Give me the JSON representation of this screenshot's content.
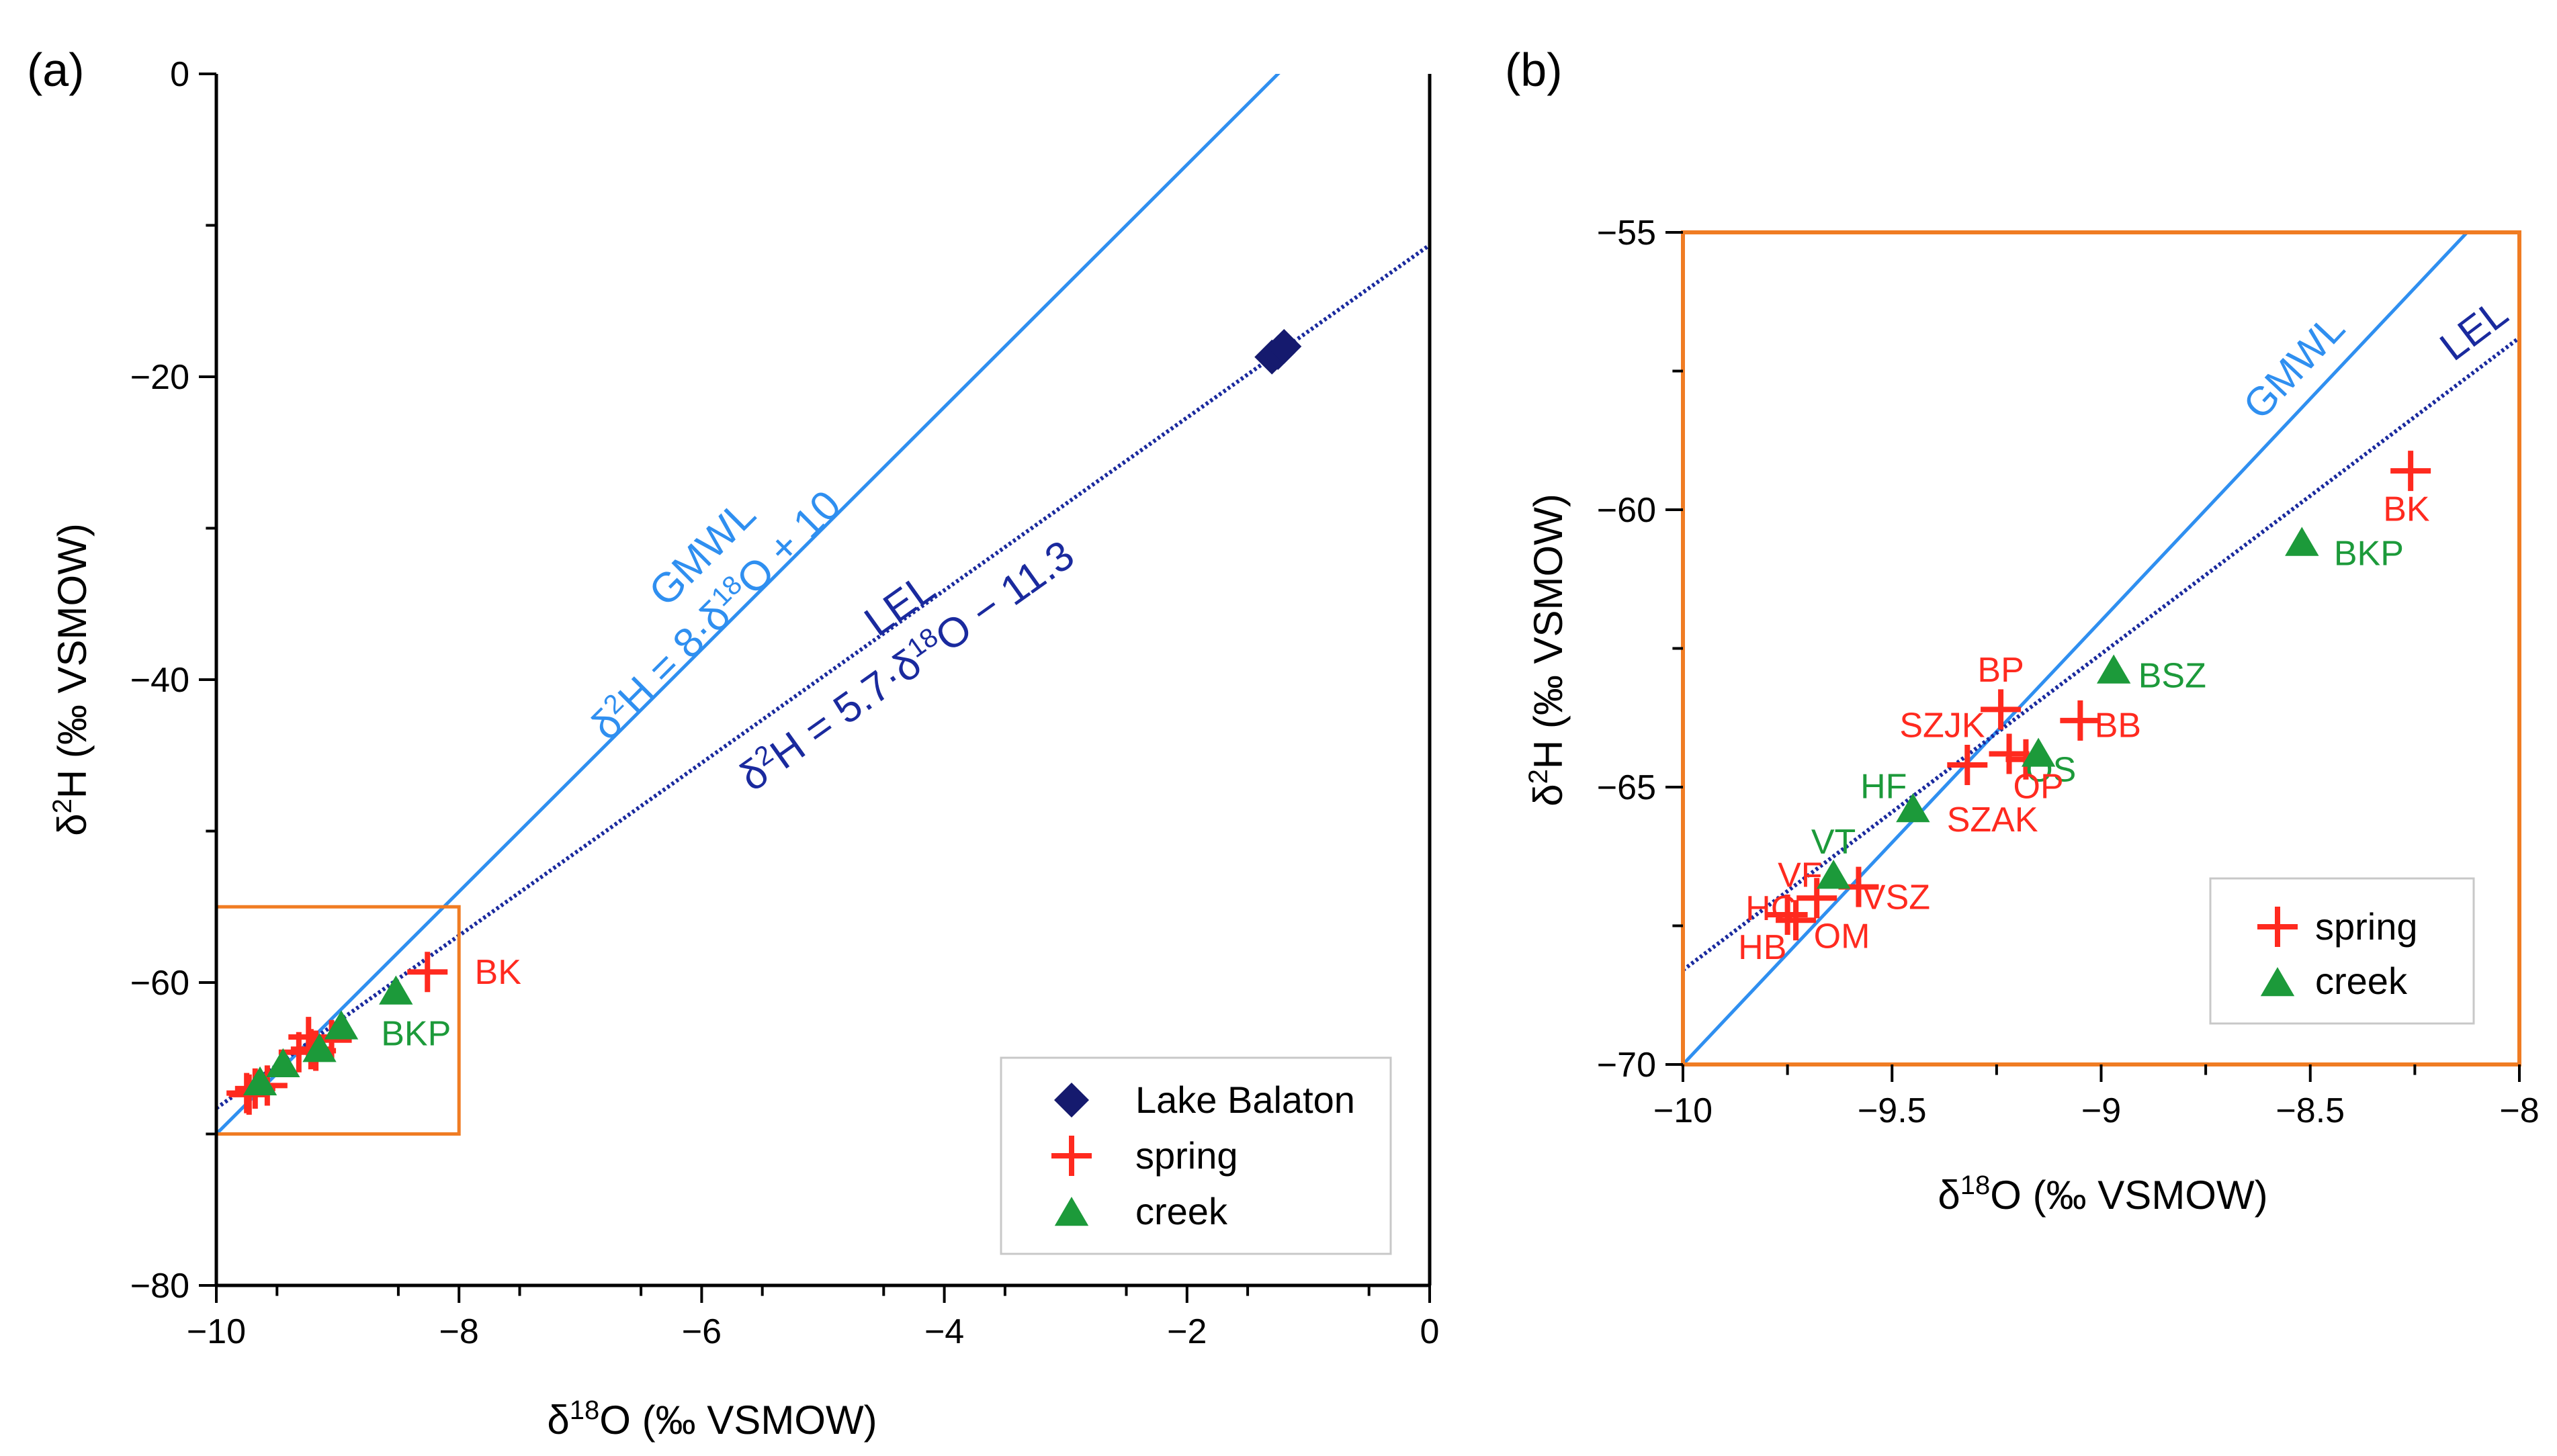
{
  "colors": {
    "lake": "#151a6e",
    "spring": "#ff2a1f",
    "creek": "#1c9a3a",
    "gmwl": "#2f8ff0",
    "lel": "#1a2a9e",
    "box": "#f07c23",
    "axis": "#000000"
  },
  "chart_data": [
    {
      "id": "a",
      "panel_label": "(a)",
      "type": "scatter",
      "xlabel": "δ18O (‰ VSMOW)",
      "ylabel": "δ2H (‰ VSMOW)",
      "xlim": [
        -10,
        0
      ],
      "ylim": [
        -80,
        0
      ],
      "xticks": [
        -10,
        -8,
        -6,
        -4,
        -2,
        0
      ],
      "yticks": [
        -80,
        -60,
        -40,
        -20,
        0
      ],
      "xtick_labels": [
        "−10",
        "−8",
        "−6",
        "−4",
        "−2",
        "0"
      ],
      "ytick_labels": [
        "−80",
        "−60",
        "−40",
        "−20",
        "0"
      ],
      "lines": [
        {
          "name": "GMWL",
          "slope": 8,
          "intercept": 10,
          "style": "solid",
          "color_key": "gmwl",
          "label": "GMWL",
          "equation": "δ2H = 8·δ18O + 10"
        },
        {
          "name": "LEL",
          "slope": 5.7,
          "intercept": -11.3,
          "style": "dotted",
          "color_key": "lel",
          "label": "LEL",
          "equation": "δ2H = 5.7·δ18O − 11.3"
        }
      ],
      "zoom_box": {
        "x": [
          -10,
          -8
        ],
        "y": [
          -70,
          -55
        ]
      },
      "series": [
        {
          "name": "Lake Balaton",
          "marker": "diamond",
          "color_key": "lake",
          "points": [
            [
              -1.3,
              -18.7
            ],
            [
              -1.25,
              -18.4
            ],
            [
              -1.2,
              -18.0
            ]
          ]
        },
        {
          "name": "spring",
          "marker": "plus",
          "color_key": "spring",
          "points": [
            [
              -9.75,
              -67.3
            ],
            [
              -9.73,
              -67.4
            ],
            [
              -9.68,
              -67.0
            ],
            [
              -9.58,
              -66.8
            ],
            [
              -9.32,
              -64.6
            ],
            [
              -9.24,
              -63.6
            ],
            [
              -9.22,
              -64.4
            ],
            [
              -9.18,
              -64.5
            ],
            [
              -9.05,
              -63.8
            ],
            [
              -8.26,
              -59.3
            ]
          ]
        },
        {
          "name": "creek",
          "marker": "triangle",
          "color_key": "creek",
          "points": [
            [
              -9.64,
              -66.6
            ],
            [
              -9.45,
              -65.4
            ],
            [
              -9.15,
              -64.4
            ],
            [
              -8.97,
              -62.9
            ],
            [
              -8.52,
              -60.6
            ]
          ]
        }
      ],
      "point_labels": [
        {
          "text": "BK",
          "x": -8.26,
          "y": -59.3,
          "color_key": "spring"
        },
        {
          "text": "BKP",
          "x": -8.52,
          "y": -60.6,
          "color_key": "creek"
        }
      ],
      "legend": {
        "position": "bottom-right",
        "entries": [
          "Lake Balaton",
          "spring",
          "creek"
        ]
      }
    },
    {
      "id": "b",
      "panel_label": "(b)",
      "type": "scatter",
      "xlabel": "δ18O (‰ VSMOW)",
      "ylabel": "δ2H (‰ VSMOW)",
      "xlim": [
        -10,
        -8
      ],
      "ylim": [
        -70,
        -55
      ],
      "xticks": [
        -10,
        -9.5,
        -9,
        -8.5,
        -8
      ],
      "yticks": [
        -70,
        -65,
        -60,
        -55
      ],
      "xtick_labels": [
        "−10",
        "−9.5",
        "−9",
        "−8.5",
        "−8"
      ],
      "ytick_labels": [
        "−70",
        "−65",
        "−60",
        "−55"
      ],
      "lines": [
        {
          "name": "GMWL",
          "slope": 8,
          "intercept": 10,
          "style": "solid",
          "color_key": "gmwl",
          "label": "GMWL"
        },
        {
          "name": "LEL",
          "slope": 5.7,
          "intercept": -11.3,
          "style": "dotted",
          "color_key": "lel",
          "label": "LEL"
        }
      ],
      "series": [
        {
          "name": "spring",
          "marker": "plus",
          "color_key": "spring",
          "points": [
            [
              -9.75,
              -67.3
            ],
            [
              -9.73,
              -67.4
            ],
            [
              -9.68,
              -67.0
            ],
            [
              -9.58,
              -66.8
            ],
            [
              -9.32,
              -64.6
            ],
            [
              -9.24,
              -63.6
            ],
            [
              -9.22,
              -64.4
            ],
            [
              -9.18,
              -64.5
            ],
            [
              -9.05,
              -63.8
            ],
            [
              -8.26,
              -59.3
            ]
          ]
        },
        {
          "name": "creek",
          "marker": "triangle",
          "color_key": "creek",
          "points": [
            [
              -9.64,
              -66.6
            ],
            [
              -9.45,
              -65.4
            ],
            [
              -9.15,
              -64.4
            ],
            [
              -8.97,
              -62.9
            ],
            [
              -8.52,
              -60.6
            ]
          ]
        }
      ],
      "point_labels": [
        {
          "text": "BK",
          "x": -8.27,
          "y": -60.2,
          "color_key": "spring"
        },
        {
          "text": "BKP",
          "x": -8.36,
          "y": -61.0,
          "color_key": "creek"
        },
        {
          "text": "BSZ",
          "x": -8.83,
          "y": -63.2,
          "color_key": "creek"
        },
        {
          "text": "BP",
          "x": -9.24,
          "y": -63.1,
          "color_key": "spring"
        },
        {
          "text": "BB",
          "x": -8.96,
          "y": -64.1,
          "color_key": "spring"
        },
        {
          "text": "SZJK",
          "x": -9.38,
          "y": -64.1,
          "color_key": "spring"
        },
        {
          "text": "OS",
          "x": -9.12,
          "y": -64.9,
          "color_key": "creek"
        },
        {
          "text": "OP",
          "x": -9.15,
          "y": -65.2,
          "color_key": "spring"
        },
        {
          "text": "SZAK",
          "x": -9.26,
          "y": -65.8,
          "color_key": "spring"
        },
        {
          "text": "HF",
          "x": -9.52,
          "y": -65.2,
          "color_key": "creek"
        },
        {
          "text": "VT",
          "x": -9.64,
          "y": -66.2,
          "color_key": "creek"
        },
        {
          "text": "VF",
          "x": -9.72,
          "y": -66.8,
          "color_key": "spring"
        },
        {
          "text": "HC",
          "x": -9.79,
          "y": -67.4,
          "color_key": "spring"
        },
        {
          "text": "HB",
          "x": -9.81,
          "y": -68.1,
          "color_key": "spring"
        },
        {
          "text": "VSZ",
          "x": -9.49,
          "y": -67.2,
          "color_key": "spring"
        },
        {
          "text": "OM",
          "x": -9.62,
          "y": -67.9,
          "color_key": "spring"
        }
      ],
      "legend": {
        "position": "bottom-right",
        "entries": [
          "spring",
          "creek"
        ]
      }
    }
  ]
}
